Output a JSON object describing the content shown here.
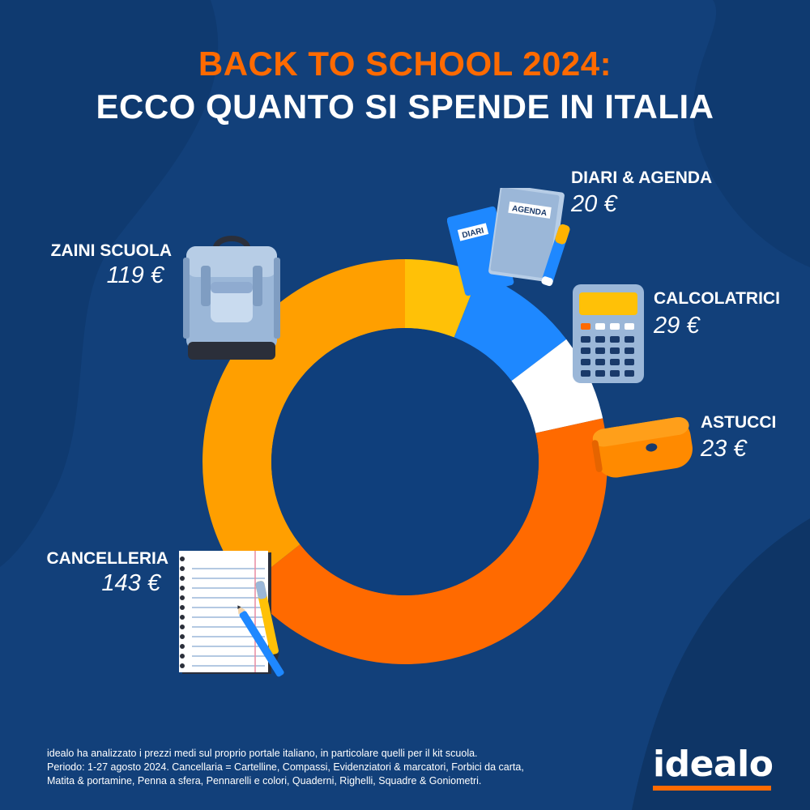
{
  "title": {
    "line1": "BACK TO SCHOOL 2024:",
    "line2": "ECCO QUANTO SI SPENDE IN ITALIA"
  },
  "colors": {
    "background": "#12407a",
    "accent": "#ff6a00",
    "slice_zaini": "#ff9f00",
    "slice_diari": "#ffc107",
    "slice_calcolatrici": "#1e88ff",
    "slice_astucci": "#ffffff",
    "slice_cancelleria": "#ff6a00"
  },
  "chart_data": {
    "type": "pie",
    "style": "donut",
    "start": "top",
    "direction": "clockwise",
    "categories": [
      "DIARI & AGENDA",
      "CALCOLATRICI",
      "ASTUCCI",
      "CANCELLERIA",
      "ZAINI SCUOLA"
    ],
    "values": [
      20,
      29,
      23,
      143,
      119
    ],
    "value_labels": [
      "20 €",
      "29 €",
      "23 €",
      "143 €",
      "119 €"
    ],
    "unit": "€"
  },
  "icons": [
    "diary-agenda-icon",
    "calculator-icon",
    "pencil-case-icon",
    "notepad-pencil-icon",
    "backpack-icon"
  ],
  "icon_text": {
    "diary": "DIARI",
    "agenda": "AGENDA"
  },
  "footnote": {
    "line1": "idealo ha analizzato i prezzi medi sul proprio portale italiano, in particolare quelli per il kit scuola.",
    "line2": "Periodo: 1-27 agosto 2024. Cancellaria = Cartelline, Compassi, Evidenziatori & marcatori, Forbici da carta,",
    "line3": "Matita & portamine, Penna a sfera, Pennarelli e colori, Quaderni, Righelli, Squadre & Goniometri."
  },
  "logo": {
    "text": "idealo"
  }
}
